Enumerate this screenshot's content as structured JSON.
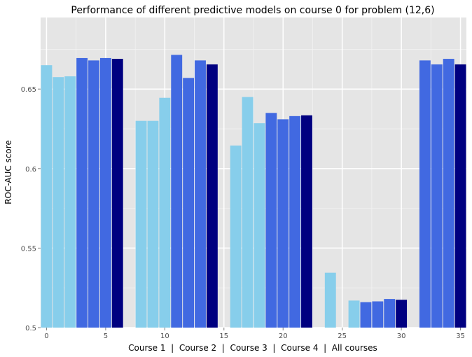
{
  "chart_data": {
    "type": "bar",
    "title": "Performance of different predictive models on course 0 for problem (12,6)",
    "xlabel": "Course 1  |  Course 2  |  Course 3  |  Course 4  |  All courses",
    "ylabel": "ROC-AUC score",
    "xlim": [
      -0.5,
      35.5
    ],
    "ylim": [
      0.5,
      0.695
    ],
    "xticks": [
      0,
      5,
      10,
      15,
      20,
      25,
      30,
      35
    ],
    "xtick_labels": [
      "0",
      "5",
      "10",
      "15",
      "20",
      "25",
      "30",
      "35"
    ],
    "yticks": [
      0.5,
      0.55,
      0.6,
      0.65
    ],
    "ytick_labels": [
      "0.5",
      "0.55",
      "0.6",
      "0.65"
    ],
    "grid": true,
    "colors": {
      "panel": "#e5e5e5",
      "grid_major": "#ffffff",
      "grid_minor": "#f2f2f2",
      "light": "#87ceeb",
      "mid": "#4169e1",
      "dark": "#000080"
    },
    "bars": [
      {
        "x": 0,
        "value": 0.665,
        "color": "light"
      },
      {
        "x": 1,
        "value": 0.6575,
        "color": "light"
      },
      {
        "x": 2,
        "value": 0.658,
        "color": "light"
      },
      {
        "x": 3,
        "value": 0.6695,
        "color": "mid"
      },
      {
        "x": 4,
        "value": 0.668,
        "color": "mid"
      },
      {
        "x": 5,
        "value": 0.6695,
        "color": "mid"
      },
      {
        "x": 6,
        "value": 0.669,
        "color": "dark"
      },
      {
        "x": 8,
        "value": 0.63,
        "color": "light"
      },
      {
        "x": 9,
        "value": 0.63,
        "color": "light"
      },
      {
        "x": 10,
        "value": 0.6445,
        "color": "light"
      },
      {
        "x": 11,
        "value": 0.6715,
        "color": "mid"
      },
      {
        "x": 12,
        "value": 0.657,
        "color": "mid"
      },
      {
        "x": 13,
        "value": 0.668,
        "color": "mid"
      },
      {
        "x": 14,
        "value": 0.6655,
        "color": "dark"
      },
      {
        "x": 16,
        "value": 0.6145,
        "color": "light"
      },
      {
        "x": 17,
        "value": 0.645,
        "color": "light"
      },
      {
        "x": 18,
        "value": 0.6285,
        "color": "light"
      },
      {
        "x": 19,
        "value": 0.635,
        "color": "mid"
      },
      {
        "x": 20,
        "value": 0.631,
        "color": "mid"
      },
      {
        "x": 21,
        "value": 0.633,
        "color": "mid"
      },
      {
        "x": 22,
        "value": 0.6335,
        "color": "dark"
      },
      {
        "x": 24,
        "value": 0.5345,
        "color": "light"
      },
      {
        "x": 26,
        "value": 0.517,
        "color": "light"
      },
      {
        "x": 27,
        "value": 0.516,
        "color": "mid"
      },
      {
        "x": 28,
        "value": 0.5165,
        "color": "mid"
      },
      {
        "x": 29,
        "value": 0.518,
        "color": "mid"
      },
      {
        "x": 30,
        "value": 0.5175,
        "color": "dark"
      },
      {
        "x": 32,
        "value": 0.668,
        "color": "mid"
      },
      {
        "x": 33,
        "value": 0.6655,
        "color": "mid"
      },
      {
        "x": 34,
        "value": 0.669,
        "color": "mid"
      },
      {
        "x": 35,
        "value": 0.6655,
        "color": "dark"
      }
    ]
  }
}
